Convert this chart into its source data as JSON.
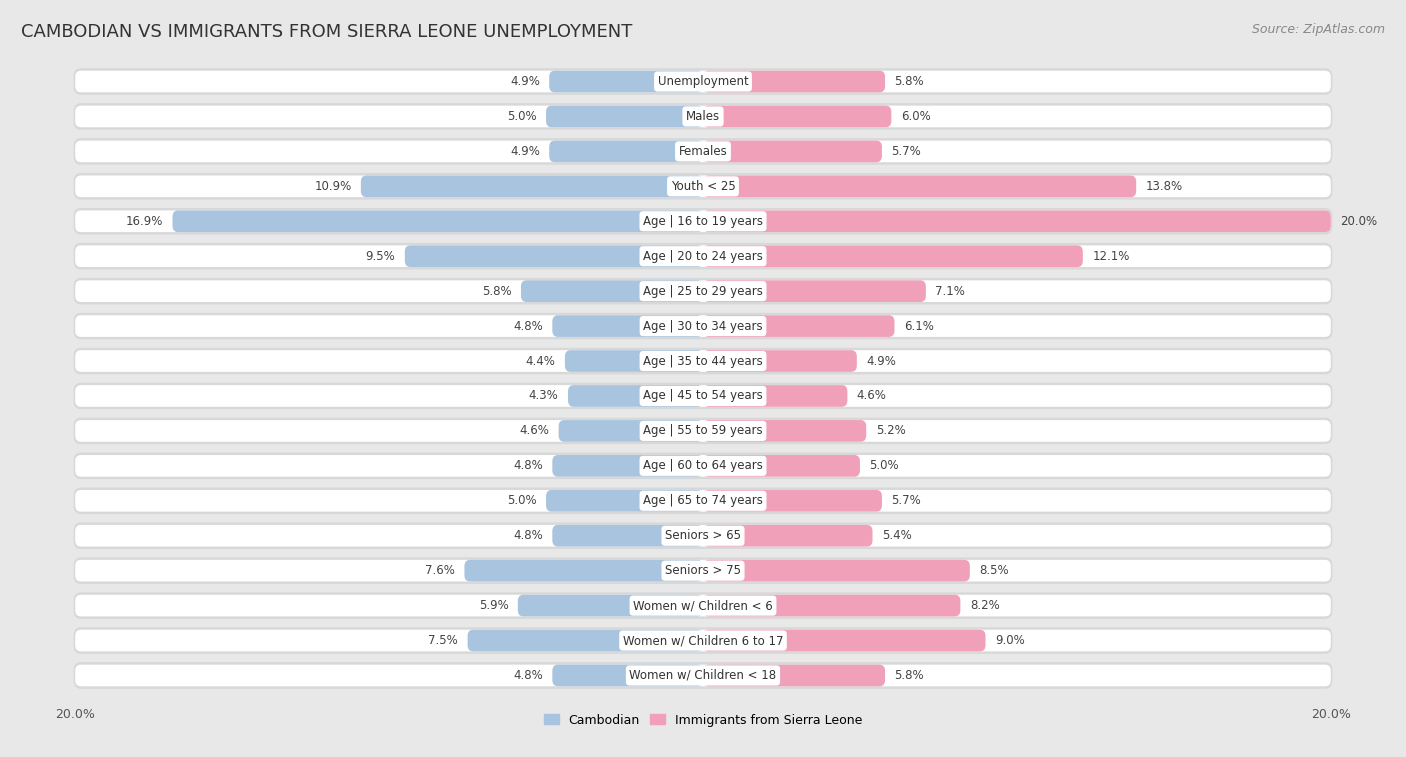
{
  "title": "CAMBODIAN VS IMMIGRANTS FROM SIERRA LEONE UNEMPLOYMENT",
  "source": "Source: ZipAtlas.com",
  "categories": [
    "Unemployment",
    "Males",
    "Females",
    "Youth < 25",
    "Age | 16 to 19 years",
    "Age | 20 to 24 years",
    "Age | 25 to 29 years",
    "Age | 30 to 34 years",
    "Age | 35 to 44 years",
    "Age | 45 to 54 years",
    "Age | 55 to 59 years",
    "Age | 60 to 64 years",
    "Age | 65 to 74 years",
    "Seniors > 65",
    "Seniors > 75",
    "Women w/ Children < 6",
    "Women w/ Children 6 to 17",
    "Women w/ Children < 18"
  ],
  "cambodian": [
    4.9,
    5.0,
    4.9,
    10.9,
    16.9,
    9.5,
    5.8,
    4.8,
    4.4,
    4.3,
    4.6,
    4.8,
    5.0,
    4.8,
    7.6,
    5.9,
    7.5,
    4.8
  ],
  "sierra_leone": [
    5.8,
    6.0,
    5.7,
    13.8,
    20.0,
    12.1,
    7.1,
    6.1,
    4.9,
    4.6,
    5.2,
    5.0,
    5.7,
    5.4,
    8.5,
    8.2,
    9.0,
    5.8
  ],
  "cambodian_color": "#a8c4de",
  "sierra_leone_color": "#f0a0b8",
  "background_color": "#e8e8e8",
  "row_bg_color": "#d8d8d8",
  "bar_bg_color": "#ffffff",
  "max_val": 20.0,
  "legend_cambodian": "Cambodian",
  "legend_sierra_leone": "Immigrants from Sierra Leone",
  "title_fontsize": 13,
  "source_fontsize": 9,
  "label_fontsize": 8.5,
  "value_fontsize": 8.5
}
